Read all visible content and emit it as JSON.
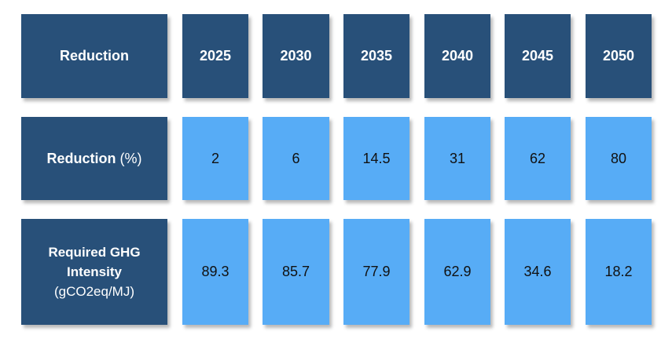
{
  "table": {
    "header": {
      "label": "Reduction",
      "years": [
        "2025",
        "2030",
        "2035",
        "2040",
        "2045",
        "2050"
      ]
    },
    "reduction_row": {
      "label_main": "Reduction",
      "label_unit": "(%)",
      "values": [
        "2",
        "6",
        "14.5",
        "31",
        "62",
        "80"
      ]
    },
    "ghg_row": {
      "label_line1": "Required GHG",
      "label_line2": "Intensity",
      "label_unit": "(gCO2eq/MJ)",
      "values": [
        "89.3",
        "85.7",
        "77.9",
        "62.9",
        "34.6",
        "18.2"
      ]
    }
  },
  "colors": {
    "dark_box": "#285079",
    "light_box": "#57acf6"
  }
}
